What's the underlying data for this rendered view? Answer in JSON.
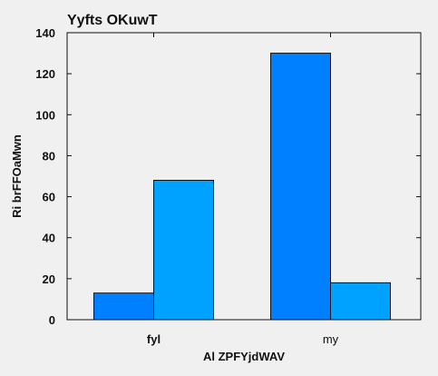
{
  "chart_data": {
    "type": "bar",
    "title": "Yyfts OKuwT",
    "xlabel": "Al ZPFYjdWAV",
    "ylabel": "Ri  brFFOaMwn",
    "categories": [
      "fyl",
      "my"
    ],
    "series": [
      {
        "values": [
          13,
          130
        ],
        "color": "#0080ff"
      },
      {
        "values": [
          68,
          18
        ],
        "color": "#00a2ff"
      }
    ],
    "ylim": [
      0,
      140
    ],
    "yticks": [
      0,
      20,
      40,
      60,
      80,
      100,
      120,
      140
    ],
    "grid": false,
    "legend": "none"
  }
}
